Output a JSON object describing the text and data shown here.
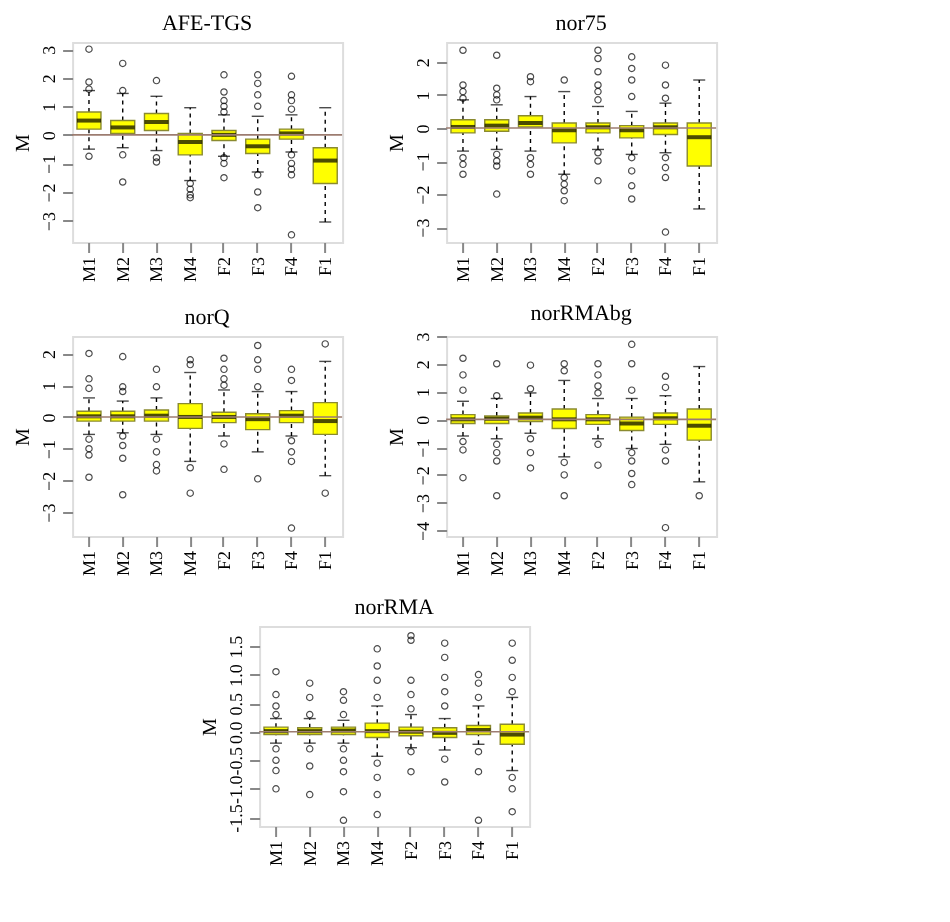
{
  "chart_data": [
    {
      "type": "box",
      "title": "AFE-TGS",
      "ylabel": "M",
      "categories": [
        "M1",
        "M2",
        "M3",
        "M4",
        "F2",
        "F3",
        "F4",
        "F1"
      ],
      "ylim": [
        -3.75,
        3.25
      ],
      "yticks": [
        -3,
        -2,
        -1,
        0,
        1,
        2,
        3
      ],
      "grid": false,
      "ref_lines": [
        {
          "axis": "y",
          "value": 0,
          "color": "#9c7c70"
        }
      ],
      "color": "#ffff00",
      "boxes": [
        {
          "low": -0.5,
          "q1": 0.2,
          "median": 0.5,
          "q3": 0.8,
          "high": 1.55,
          "outliers": [
            3.0,
            1.85,
            1.6,
            -0.75
          ]
        },
        {
          "low": -0.45,
          "q1": 0.05,
          "median": 0.26,
          "q3": 0.5,
          "high": 1.45,
          "outliers": [
            2.5,
            1.55,
            -0.7,
            -1.65
          ]
        },
        {
          "low": -0.55,
          "q1": 0.15,
          "median": 0.45,
          "q3": 0.75,
          "high": 1.35,
          "outliers": [
            1.9,
            -0.8,
            -0.95
          ]
        },
        {
          "low": -1.6,
          "q1": -0.7,
          "median": -0.25,
          "q3": 0.05,
          "high": 0.95,
          "outliers": [
            -1.7,
            -1.9,
            -2.1,
            -2.2
          ]
        },
        {
          "low": -0.75,
          "q1": -0.2,
          "median": 0.0,
          "q3": 0.15,
          "high": 0.7,
          "outliers": [
            2.1,
            1.5,
            1.2,
            1.0,
            0.8,
            -0.8,
            -1.0,
            -1.5
          ]
        },
        {
          "low": -1.3,
          "q1": -0.65,
          "median": -0.4,
          "q3": -0.15,
          "high": 0.65,
          "outliers": [
            2.1,
            1.8,
            1.4,
            1.0,
            -1.4,
            -2.0,
            -2.55
          ]
        },
        {
          "low": -0.6,
          "q1": -0.15,
          "median": 0.05,
          "q3": 0.2,
          "high": 0.7,
          "outliers": [
            2.05,
            1.4,
            1.2,
            0.9,
            -0.7,
            -1.0,
            -1.2,
            -1.4,
            -3.5
          ]
        },
        {
          "low": -3.05,
          "q1": -1.7,
          "median": -0.9,
          "q3": -0.45,
          "high": 0.95
        }
      ]
    },
    {
      "type": "box",
      "title": "nor75",
      "ylabel": "M",
      "categories": [
        "M1",
        "M2",
        "M3",
        "M4",
        "F2",
        "F3",
        "F4",
        "F1"
      ],
      "ylim": [
        -3.45,
        2.6
      ],
      "yticks": [
        -3,
        -2,
        -1,
        0,
        1,
        2
      ],
      "grid": false,
      "ref_lines": [
        {
          "axis": "y",
          "value": 0,
          "color": "#9c7c70"
        }
      ],
      "color": "#ffff00",
      "boxes": [
        {
          "low": -0.7,
          "q1": -0.15,
          "median": 0.03,
          "q3": 0.25,
          "high": 0.85,
          "outliers": [
            2.35,
            1.3,
            1.1,
            0.9,
            -0.9,
            -1.1,
            -1.4
          ]
        },
        {
          "low": -0.65,
          "q1": -0.1,
          "median": 0.07,
          "q3": 0.25,
          "high": 0.7,
          "outliers": [
            2.2,
            1.2,
            1.0,
            0.85,
            -0.8,
            -1.0,
            -1.15,
            -2.0
          ]
        },
        {
          "low": -0.7,
          "q1": 0.03,
          "median": 0.15,
          "q3": 0.37,
          "high": 0.95,
          "outliers": [
            1.55,
            1.4,
            -0.9,
            -1.1,
            -1.4
          ]
        },
        {
          "low": -1.4,
          "q1": -0.45,
          "median": -0.07,
          "q3": 0.15,
          "high": 1.1,
          "outliers": [
            1.45,
            -1.5,
            -1.7,
            -1.9,
            -2.2
          ]
        },
        {
          "low": -0.65,
          "q1": -0.15,
          "median": 0.02,
          "q3": 0.15,
          "high": 0.65,
          "outliers": [
            2.35,
            2.1,
            1.7,
            1.3,
            1.1,
            0.85,
            -0.75,
            -1.0,
            -1.6
          ]
        },
        {
          "low": -0.8,
          "q1": -0.3,
          "median": -0.07,
          "q3": 0.07,
          "high": 0.5,
          "outliers": [
            2.15,
            1.8,
            1.45,
            0.95,
            -0.9,
            -1.3,
            -1.75,
            -2.15
          ]
        },
        {
          "low": -0.75,
          "q1": -0.2,
          "median": 0.02,
          "q3": 0.15,
          "high": 0.75,
          "outliers": [
            1.9,
            1.3,
            0.9,
            -0.9,
            -1.2,
            -1.5,
            -3.15
          ]
        },
        {
          "low": -2.45,
          "q1": -1.15,
          "median": -0.28,
          "q3": 0.15,
          "high": 1.45
        }
      ]
    },
    {
      "type": "box",
      "title": "norQ",
      "ylabel": "M",
      "categories": [
        "M1",
        "M2",
        "M3",
        "M4",
        "F2",
        "F3",
        "F4",
        "F1"
      ],
      "ylim": [
        -3.75,
        2.55
      ],
      "yticks": [
        -3,
        -2,
        -1,
        0,
        1,
        2
      ],
      "grid": false,
      "ref_lines": [
        {
          "axis": "y",
          "value": 0,
          "color": "#9c7c70"
        }
      ],
      "color": "#ffff00",
      "boxes": [
        {
          "low": -0.55,
          "q1": -0.13,
          "median": 0.02,
          "q3": 0.18,
          "high": 0.6,
          "outliers": [
            2.0,
            1.2,
            0.9,
            -0.7,
            -1.0,
            -1.2,
            -1.9
          ]
        },
        {
          "low": -0.5,
          "q1": -0.13,
          "median": 0.02,
          "q3": 0.18,
          "high": 0.5,
          "outliers": [
            1.9,
            0.95,
            0.8,
            -0.6,
            -0.9,
            -1.3,
            -2.45
          ]
        },
        {
          "low": -0.55,
          "q1": -0.13,
          "median": 0.04,
          "q3": 0.22,
          "high": 0.6,
          "outliers": [
            1.5,
            0.95,
            -0.7,
            -1.1,
            -1.5,
            -1.7
          ]
        },
        {
          "low": -1.4,
          "q1": -0.36,
          "median": 0.0,
          "q3": 0.42,
          "high": 1.4,
          "outliers": [
            1.8,
            1.65,
            -1.6,
            -2.4
          ]
        },
        {
          "low": -0.6,
          "q1": -0.18,
          "median": 0.0,
          "q3": 0.15,
          "high": 0.85,
          "outliers": [
            1.85,
            1.5,
            1.2,
            1.0,
            -0.85,
            -1.65
          ]
        },
        {
          "low": -1.1,
          "q1": -0.4,
          "median": -0.07,
          "q3": 0.1,
          "high": 0.8,
          "outliers": [
            2.25,
            1.8,
            1.5,
            0.95,
            -1.95
          ]
        },
        {
          "low": -0.6,
          "q1": -0.18,
          "median": 0.04,
          "q3": 0.2,
          "high": 0.8,
          "outliers": [
            1.5,
            1.15,
            -0.75,
            -1.1,
            -1.4,
            -3.5
          ]
        },
        {
          "low": -1.85,
          "q1": -0.55,
          "median": -0.13,
          "q3": 0.45,
          "high": 1.75,
          "outliers": [
            2.3,
            -2.4
          ]
        }
      ]
    },
    {
      "type": "box",
      "title": "norRMAbg",
      "ylabel": "M",
      "categories": [
        "M1",
        "M2",
        "M3",
        "M4",
        "F2",
        "F3",
        "F4",
        "F1"
      ],
      "ylim": [
        -4.2,
        3.0
      ],
      "yticks": [
        -4,
        -3,
        -2,
        -1,
        0,
        1,
        2,
        3
      ],
      "grid": false,
      "ref_lines": [
        {
          "axis": "y",
          "value": 0,
          "color": "#9c7c70"
        }
      ],
      "color": "#ffff00",
      "boxes": [
        {
          "low": -0.6,
          "q1": -0.15,
          "median": 0.0,
          "q3": 0.17,
          "high": 0.65,
          "outliers": [
            2.2,
            1.6,
            1.05,
            -0.8,
            -1.1,
            -2.1
          ]
        },
        {
          "low": -0.7,
          "q1": -0.15,
          "median": 0.02,
          "q3": 0.12,
          "high": 0.75,
          "outliers": [
            2.0,
            0.85,
            -0.9,
            -1.2,
            -1.5,
            -2.75
          ]
        },
        {
          "low": -0.5,
          "q1": -0.08,
          "median": 0.06,
          "q3": 0.23,
          "high": 0.95,
          "outliers": [
            1.95,
            1.1,
            -0.7,
            -1.2,
            -1.75
          ]
        },
        {
          "low": -1.35,
          "q1": -0.33,
          "median": 0.0,
          "q3": 0.37,
          "high": 1.4,
          "outliers": [
            2.0,
            1.75,
            -1.55,
            -2.0,
            -2.75
          ]
        },
        {
          "low": -0.7,
          "q1": -0.18,
          "median": 0.0,
          "q3": 0.17,
          "high": 0.75,
          "outliers": [
            2.0,
            1.6,
            1.2,
            0.95,
            -0.9,
            -1.65
          ]
        },
        {
          "low": -1.05,
          "q1": -0.4,
          "median": -0.15,
          "q3": 0.08,
          "high": 0.75,
          "outliers": [
            2.7,
            2.0,
            1.05,
            -1.2,
            -1.5,
            -1.95,
            -2.35
          ]
        },
        {
          "low": -0.9,
          "q1": -0.18,
          "median": 0.04,
          "q3": 0.23,
          "high": 0.85,
          "outliers": [
            1.55,
            1.15,
            -1.1,
            -1.5,
            -3.9
          ]
        },
        {
          "low": -2.25,
          "q1": -0.75,
          "median": -0.23,
          "q3": 0.37,
          "high": 1.9,
          "outliers": [
            -2.75
          ]
        }
      ]
    },
    {
      "type": "box",
      "title": "norRMA",
      "ylabel": "M",
      "categories": [
        "M1",
        "M2",
        "M3",
        "M4",
        "F2",
        "F3",
        "F4",
        "F1"
      ],
      "ylim": [
        -1.65,
        1.85
      ],
      "yticks": [
        {
          "value": -1.5,
          "label": "-1.5"
        },
        {
          "value": -1,
          "label": "-1.0"
        },
        {
          "value": -0.5,
          "label": "-0.5"
        },
        {
          "value": 0,
          "label": "0.0"
        },
        {
          "value": 0.5,
          "label": "0.5"
        },
        {
          "value": 1,
          "label": "1.0"
        },
        {
          "value": 1.5,
          "label": "1.5"
        }
      ],
      "grid": false,
      "ref_lines": [
        {
          "axis": "y",
          "value": 0,
          "color": "#9c7c70"
        }
      ],
      "color": "#ffff00",
      "boxes": [
        {
          "low": -0.2,
          "q1": -0.05,
          "median": 0.01,
          "q3": 0.08,
          "high": 0.23,
          "outliers": [
            1.05,
            0.65,
            0.45,
            0.3,
            -0.3,
            -0.5,
            -0.68,
            -1.0
          ]
        },
        {
          "low": -0.2,
          "q1": -0.05,
          "median": 0.01,
          "q3": 0.07,
          "high": 0.23,
          "outliers": [
            0.85,
            0.6,
            0.3,
            -0.3,
            -0.6,
            -1.1
          ]
        },
        {
          "low": -0.2,
          "q1": -0.05,
          "median": 0.02,
          "q3": 0.08,
          "high": 0.2,
          "outliers": [
            0.7,
            0.55,
            0.3,
            -0.3,
            -0.5,
            -0.7,
            -1.05,
            -1.55
          ]
        },
        {
          "low": -0.43,
          "q1": -0.1,
          "median": 0.01,
          "q3": 0.15,
          "high": 0.45,
          "outliers": [
            1.45,
            1.15,
            0.9,
            0.6,
            -0.55,
            -0.8,
            -1.1,
            -1.45
          ]
        },
        {
          "low": -0.28,
          "q1": -0.07,
          "median": 0.0,
          "q3": 0.08,
          "high": 0.3,
          "outliers": [
            1.68,
            1.6,
            0.9,
            0.65,
            0.4,
            -0.35,
            -0.7
          ]
        },
        {
          "low": -0.32,
          "q1": -0.1,
          "median": -0.02,
          "q3": 0.07,
          "high": 0.23,
          "outliers": [
            1.55,
            1.3,
            0.95,
            0.7,
            0.45,
            -0.48,
            -0.88
          ]
        },
        {
          "low": -0.22,
          "q1": -0.05,
          "median": 0.03,
          "q3": 0.11,
          "high": 0.45,
          "outliers": [
            1.0,
            0.85,
            0.6,
            -0.35,
            -0.7,
            -1.55
          ]
        },
        {
          "low": -0.68,
          "q1": -0.22,
          "median": -0.05,
          "q3": 0.13,
          "high": 0.6,
          "outliers": [
            1.55,
            1.25,
            0.95,
            0.7,
            -0.8,
            -1.0,
            -1.4
          ]
        }
      ]
    }
  ]
}
